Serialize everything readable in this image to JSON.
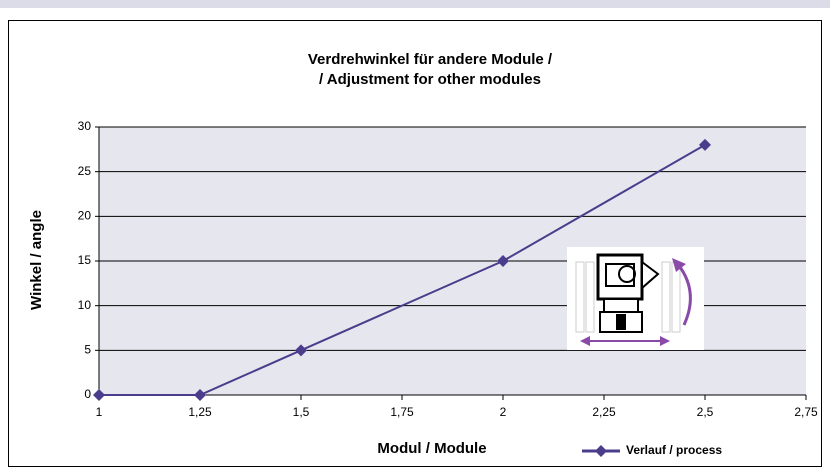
{
  "chart_data": {
    "type": "line",
    "title": [
      "Verdrehwinkel für andere Module /",
      "/ Adjustment for other modules"
    ],
    "x_label": "Modul / Module",
    "y_label": "Winkel / angle",
    "x": [
      1,
      1.25,
      1.5,
      2,
      2.5
    ],
    "series": [
      {
        "name": "Verlauf / process",
        "color": "#4b3c8c",
        "values": [
          0,
          0,
          5,
          15,
          28
        ]
      }
    ],
    "xlim": [
      1,
      2.75
    ],
    "xticks": [
      1,
      {
        "value": 1.25,
        "label": "1,25"
      },
      {
        "value": 1.5,
        "label": "1,5"
      },
      {
        "value": 1.75,
        "label": "1,75"
      },
      2,
      {
        "value": 2.25,
        "label": "2,25"
      },
      {
        "value": 2.5,
        "label": "2,5"
      },
      {
        "value": 2.75,
        "label": "2,75"
      }
    ],
    "ylim": [
      0,
      30
    ],
    "yticks": [
      0,
      5,
      10,
      15,
      20,
      25,
      30
    ],
    "grid": true,
    "legend": "bottom-right",
    "plot_background": "#e6e6ee"
  }
}
